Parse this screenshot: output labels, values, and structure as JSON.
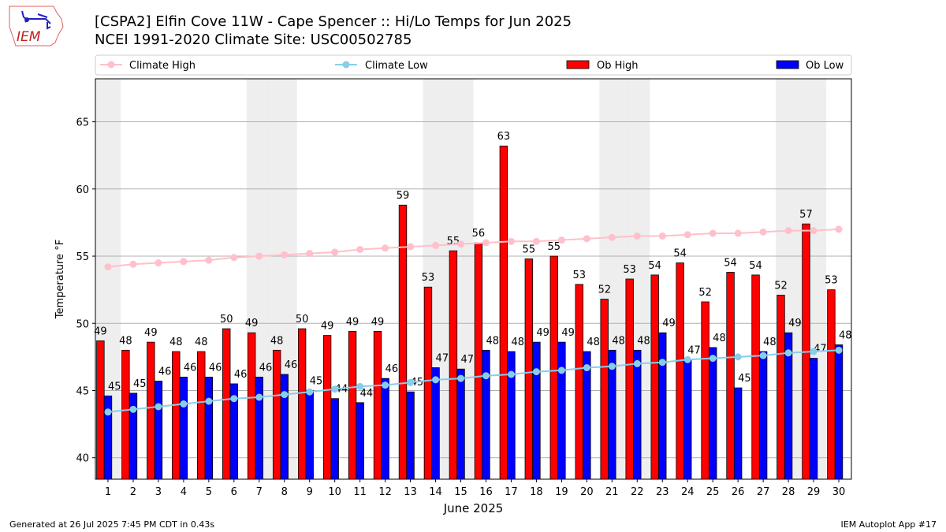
{
  "header": {
    "title_line1": "[CSPA2] Elfin Cove 11W - Cape Spencer :: Hi/Lo Temps for Jun 2025",
    "title_line2": "NCEI 1991-2020 Climate Site: USC00502785",
    "logo_text": "IEM"
  },
  "footer": {
    "left": "Generated at 26 Jul 2025 7:45 PM CDT in 0.43s",
    "right": "IEM Autoplot App #17"
  },
  "colors": {
    "ob_high": "#ff0000",
    "ob_low": "#0000ff",
    "climate_high": "#ffc0cb",
    "climate_low": "#87ceeb",
    "weekend": "#eeeeee"
  },
  "chart_data": {
    "type": "bar",
    "title": "[CSPA2] Elfin Cove 11W - Cape Spencer :: Hi/Lo Temps for Jun 2025",
    "xlabel": "June 2025",
    "ylabel": "Temperature °F",
    "xlim": [
      0.5,
      30.5
    ],
    "ylim": [
      38.4,
      68.2
    ],
    "yticks": [
      40,
      45,
      50,
      55,
      60,
      65
    ],
    "grid": "y",
    "legend_position": "top, outside",
    "weekend_days": [
      1,
      7,
      8,
      14,
      15,
      21,
      22,
      28,
      29
    ],
    "categories": [
      1,
      2,
      3,
      4,
      5,
      6,
      7,
      8,
      9,
      10,
      11,
      12,
      13,
      14,
      15,
      16,
      17,
      18,
      19,
      20,
      21,
      22,
      23,
      24,
      25,
      26,
      27,
      28,
      29,
      30
    ],
    "series": [
      {
        "name": "Ob High",
        "type": "bar",
        "values": [
          48.7,
          48.0,
          48.6,
          47.9,
          47.9,
          49.6,
          49.3,
          48.0,
          49.6,
          49.1,
          49.4,
          49.4,
          58.8,
          52.7,
          55.4,
          56.0,
          63.2,
          54.8,
          55.0,
          52.9,
          51.8,
          53.3,
          53.6,
          54.5,
          51.6,
          53.8,
          53.6,
          52.1,
          57.4,
          52.5
        ],
        "labels": [
          49,
          48,
          49,
          48,
          48,
          50,
          49,
          48,
          50,
          49,
          49,
          49,
          59,
          53,
          55,
          56,
          63,
          55,
          55,
          53,
          52,
          53,
          54,
          54,
          52,
          54,
          54,
          52,
          57,
          53
        ]
      },
      {
        "name": "Ob Low",
        "type": "bar",
        "values": [
          44.6,
          44.8,
          45.7,
          46.0,
          46.0,
          45.5,
          46.0,
          46.2,
          45.0,
          44.4,
          44.1,
          45.9,
          44.9,
          46.7,
          46.6,
          48.0,
          47.9,
          48.6,
          48.6,
          47.9,
          48.0,
          48.0,
          49.3,
          47.3,
          48.2,
          45.2,
          47.9,
          49.3,
          47.4,
          48.4
        ],
        "labels": [
          45,
          45,
          46,
          46,
          46,
          46,
          46,
          46,
          45,
          44,
          44,
          46,
          45,
          47,
          47,
          48,
          48,
          49,
          49,
          48,
          48,
          48,
          49,
          47,
          48,
          45,
          48,
          49,
          47,
          48
        ]
      },
      {
        "name": "Climate High",
        "type": "line",
        "values": [
          54.2,
          54.4,
          54.5,
          54.6,
          54.7,
          54.9,
          55.0,
          55.1,
          55.2,
          55.3,
          55.5,
          55.6,
          55.7,
          55.8,
          55.9,
          56.0,
          56.1,
          56.1,
          56.2,
          56.3,
          56.4,
          56.5,
          56.5,
          56.6,
          56.7,
          56.7,
          56.8,
          56.9,
          56.9,
          57.0
        ]
      },
      {
        "name": "Climate Low",
        "type": "line",
        "values": [
          43.4,
          43.6,
          43.8,
          44.0,
          44.2,
          44.4,
          44.5,
          44.7,
          44.9,
          45.1,
          45.3,
          45.4,
          45.6,
          45.8,
          45.9,
          46.1,
          46.2,
          46.4,
          46.5,
          46.7,
          46.8,
          47.0,
          47.1,
          47.3,
          47.4,
          47.5,
          47.6,
          47.8,
          47.9,
          48.0
        ]
      }
    ]
  }
}
